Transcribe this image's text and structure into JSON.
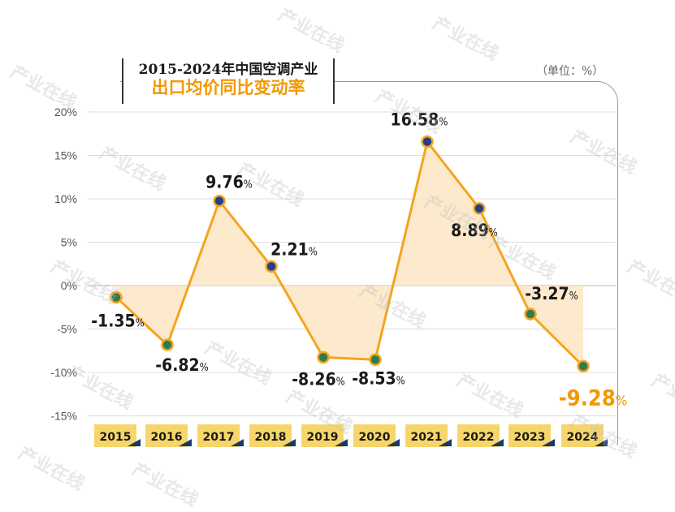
{
  "title": {
    "line1": "2015-2024年中国空调产业",
    "line2": "出口均价同比变动率"
  },
  "unit_label": "（单位：%）",
  "watermark_text": "产业在线",
  "colors": {
    "line": "#f5a41e",
    "fill": "#fde6c4",
    "positive_marker": "#1f3f8f",
    "negative_marker": "#2e7d4f",
    "highlight_label": "#f39800",
    "category_box": "#f6d66b",
    "grid": "#dddddd"
  },
  "chart_data": {
    "type": "area",
    "title": "2015-2024年中国空调产业 出口均价同比变动率",
    "categories": [
      "2015",
      "2016",
      "2017",
      "2018",
      "2019",
      "2020",
      "2021",
      "2022",
      "2023",
      "2024"
    ],
    "values": [
      -1.35,
      -6.82,
      9.76,
      2.21,
      -8.26,
      -8.53,
      16.58,
      8.89,
      -3.27,
      -9.28
    ],
    "value_labels": [
      "-1.35",
      "-6.82",
      "9.76",
      "2.21",
      "-8.26",
      "-8.53",
      "16.58",
      "8.89",
      "-3.27",
      "-9.28"
    ],
    "percent_suffix": "%",
    "yticks": [
      "20%",
      "15%",
      "10%",
      "5%",
      "0%",
      "-5%",
      "-10%",
      "-15%"
    ],
    "ylim": [
      -15,
      20
    ],
    "xlabel": "",
    "ylabel": "",
    "grid": true,
    "legend": "none"
  }
}
